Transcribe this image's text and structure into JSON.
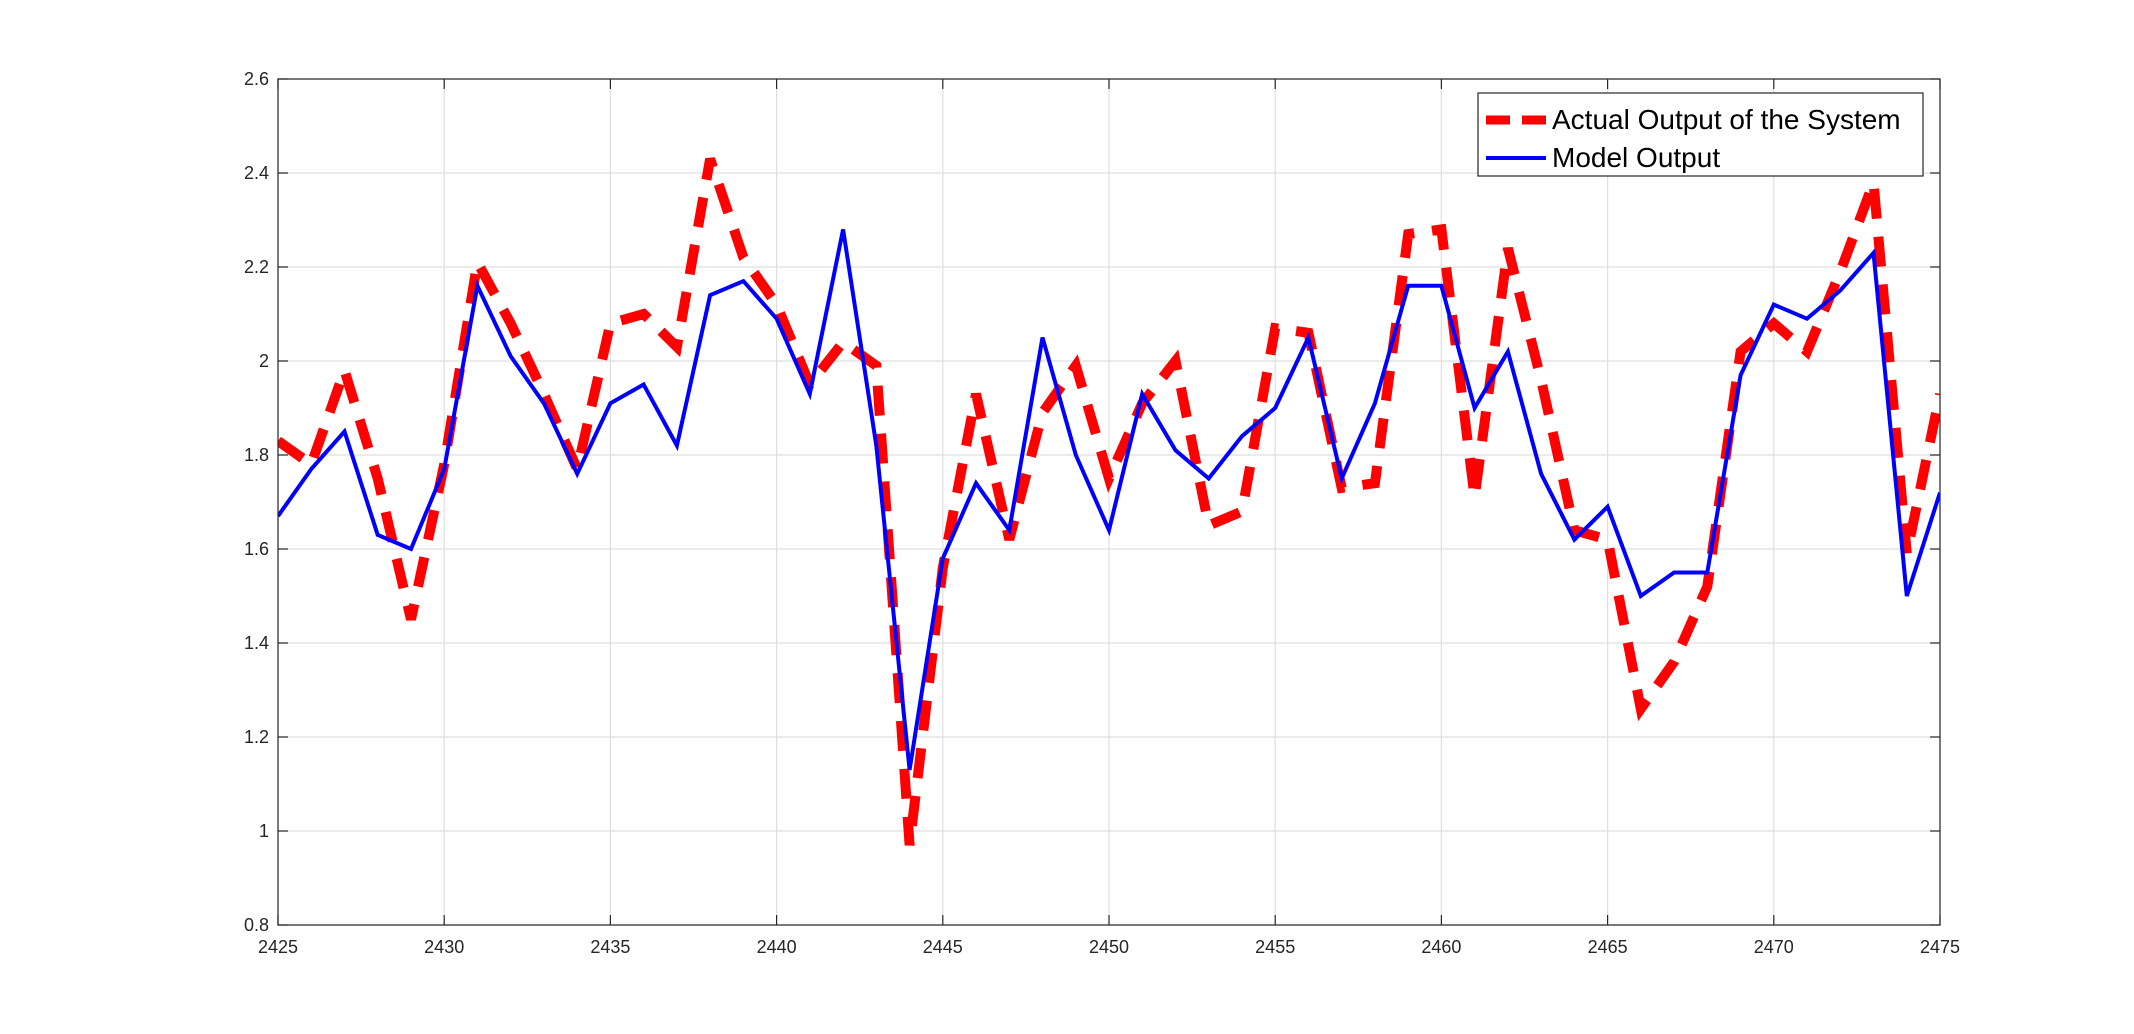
{
  "chart_data": {
    "type": "line",
    "title": "",
    "xlabel": "",
    "ylabel": "",
    "xlim": [
      2425,
      2475
    ],
    "ylim": [
      0.8,
      2.6
    ],
    "xticks": [
      2425,
      2430,
      2435,
      2440,
      2445,
      2450,
      2455,
      2460,
      2465,
      2470,
      2475
    ],
    "yticks": [
      0.8,
      1,
      1.2,
      1.4,
      1.6,
      1.8,
      2,
      2.2,
      2.4,
      2.6
    ],
    "xtick_labels": [
      "2425",
      "2430",
      "2435",
      "2440",
      "2445",
      "2450",
      "2455",
      "2460",
      "2465",
      "2470",
      "2475"
    ],
    "ytick_labels": [
      "0.8",
      "1",
      "1.2",
      "1.4",
      "1.6",
      "1.8",
      "2",
      "2.2",
      "2.4",
      "2.6"
    ],
    "grid": true,
    "legend_position": "top-right",
    "x": [
      2425,
      2426,
      2427,
      2428,
      2429,
      2430,
      2431,
      2432,
      2433,
      2434,
      2435,
      2436,
      2437,
      2438,
      2439,
      2440,
      2441,
      2442,
      2443,
      2444,
      2445,
      2446,
      2447,
      2448,
      2449,
      2450,
      2451,
      2452,
      2453,
      2454,
      2455,
      2456,
      2457,
      2458,
      2459,
      2460,
      2461,
      2462,
      2463,
      2464,
      2465,
      2466,
      2467,
      2468,
      2469,
      2470,
      2471,
      2472,
      2473,
      2474,
      2475
    ],
    "series": [
      {
        "name": "Actual Output of the System",
        "color": "#ff0000",
        "style": "dashed",
        "values": [
          1.83,
          1.78,
          1.98,
          1.75,
          1.45,
          1.78,
          2.21,
          2.08,
          1.93,
          1.77,
          2.08,
          2.1,
          2.03,
          2.43,
          2.22,
          2.12,
          1.95,
          2.04,
          1.99,
          0.97,
          1.56,
          1.93,
          1.62,
          1.89,
          1.99,
          1.75,
          1.91,
          2.0,
          1.65,
          1.68,
          2.07,
          2.06,
          1.73,
          1.74,
          2.27,
          2.28,
          1.71,
          2.24,
          1.96,
          1.64,
          1.62,
          1.26,
          1.36,
          1.52,
          2.02,
          2.08,
          2.02,
          2.19,
          2.38,
          1.59,
          1.93
        ]
      },
      {
        "name": "Model Output",
        "color": "#0000ff",
        "style": "solid",
        "values": [
          1.67,
          1.77,
          1.85,
          1.63,
          1.6,
          1.77,
          2.16,
          2.01,
          1.91,
          1.76,
          1.91,
          1.95,
          1.82,
          2.14,
          2.17,
          2.09,
          1.93,
          2.28,
          1.82,
          1.13,
          1.58,
          1.74,
          1.64,
          2.05,
          1.8,
          1.64,
          1.93,
          1.81,
          1.75,
          1.84,
          1.9,
          2.05,
          1.75,
          1.91,
          2.16,
          2.16,
          1.9,
          2.02,
          1.76,
          1.62,
          1.69,
          1.5,
          1.55,
          1.55,
          1.97,
          2.12,
          2.09,
          2.15,
          2.23,
          1.5,
          1.72
        ]
      }
    ]
  }
}
